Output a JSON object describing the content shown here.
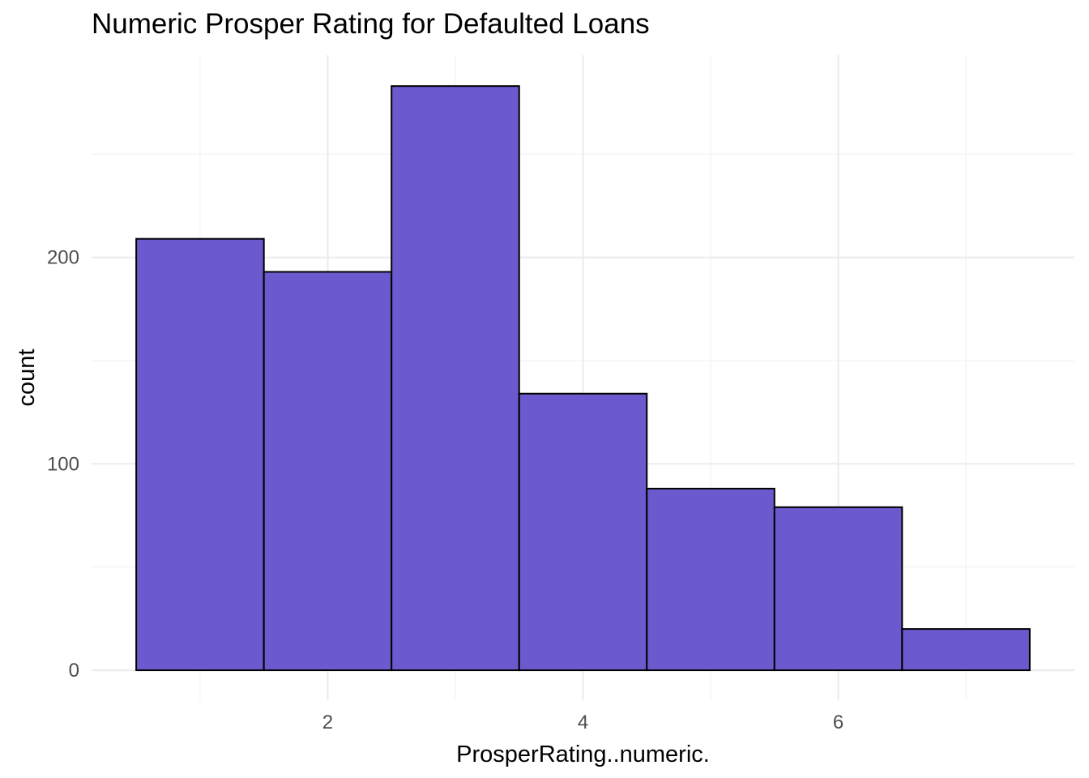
{
  "chart_data": {
    "type": "bar",
    "title": "Numeric Prosper Rating for Defaulted Loans",
    "xlabel": "ProsperRating..numeric.",
    "ylabel": "count",
    "bins": [
      {
        "center": 1,
        "value": 209
      },
      {
        "center": 2,
        "value": 193
      },
      {
        "center": 3,
        "value": 283
      },
      {
        "center": 4,
        "value": 134
      },
      {
        "center": 5,
        "value": 88
      },
      {
        "center": 6,
        "value": 79
      },
      {
        "center": 7,
        "value": 20
      }
    ],
    "bin_width": 1,
    "xlim": [
      0.15,
      7.85
    ],
    "ylim": [
      -14.5,
      298
    ],
    "x_ticks": [
      2,
      4,
      6
    ],
    "x_minor_ticks": [
      1,
      3,
      5,
      7
    ],
    "y_ticks": [
      0,
      100,
      200
    ],
    "y_minor_ticks": [
      50,
      150,
      250
    ],
    "grid": true,
    "colors": {
      "bar_fill": "#6A5ACD",
      "bar_stroke": "#000000",
      "grid_major": "#ebebeb",
      "grid_minor": "#f3f3f3",
      "tick_text": "#4d4d4d"
    }
  }
}
